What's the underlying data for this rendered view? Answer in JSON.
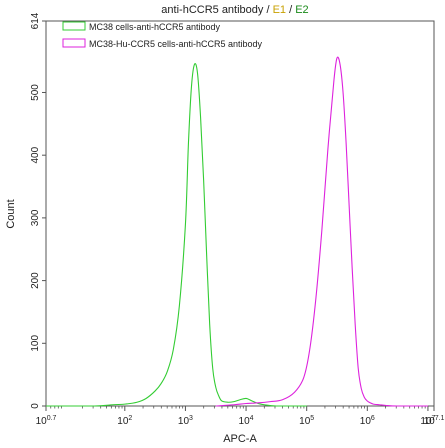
{
  "chart_data": {
    "type": "line",
    "title": {
      "prefix": "anti-hCCR5 antibody / ",
      "e1": "E1",
      "sep": " / ",
      "e2": "E2"
    },
    "title_colors": {
      "prefix": "#111111",
      "e1": "#c8a000",
      "e2": "#1a8a1a"
    },
    "xlabel": "APC-A",
    "ylabel": "Count",
    "x_scale": "log10",
    "xlim": [
      0.7,
      7.1
    ],
    "ylim": [
      0,
      614
    ],
    "x_ticks": [
      {
        "exp": 0.7,
        "base": "10",
        "sup": "0.7"
      },
      {
        "exp": 2,
        "base": "10",
        "sup": "2"
      },
      {
        "exp": 3,
        "base": "10",
        "sup": "3"
      },
      {
        "exp": 4,
        "base": "10",
        "sup": "4"
      },
      {
        "exp": 5,
        "base": "10",
        "sup": "5"
      },
      {
        "exp": 6,
        "base": "10",
        "sup": "6"
      },
      {
        "exp": 7,
        "base": "10",
        "sup": "7"
      },
      {
        "exp": 7.1,
        "base": "10",
        "sup": "7.1"
      }
    ],
    "y_ticks": [
      0,
      100,
      200,
      300,
      400,
      500,
      614
    ],
    "legend_position": "top-left",
    "series": [
      {
        "name": "MC38 cells-anti-hCCR5 antibody",
        "color": "#33cc33",
        "x": [
          0.7,
          1.5,
          1.8,
          2.0,
          2.2,
          2.35,
          2.5,
          2.6,
          2.7,
          2.8,
          2.9,
          3.0,
          3.05,
          3.1,
          3.15,
          3.2,
          3.25,
          3.3,
          3.35,
          3.4,
          3.45,
          3.5,
          3.55,
          3.6,
          3.7,
          3.8,
          3.9,
          4.0,
          4.1,
          4.2,
          4.3,
          4.5,
          5.0
        ],
        "y": [
          0,
          0,
          2,
          3,
          6,
          12,
          24,
          36,
          55,
          90,
          160,
          290,
          420,
          510,
          545,
          530,
          460,
          360,
          240,
          130,
          60,
          30,
          16,
          8,
          6,
          7,
          10,
          12,
          8,
          4,
          2,
          0,
          0
        ]
      },
      {
        "name": "MC38-Hu-CCR5 cells-anti-hCCR5 antibody",
        "color": "#dd22dd",
        "x": [
          3.5,
          3.8,
          4.0,
          4.2,
          4.4,
          4.6,
          4.8,
          4.95,
          5.05,
          5.15,
          5.25,
          5.35,
          5.45,
          5.5,
          5.55,
          5.6,
          5.65,
          5.7,
          5.75,
          5.8,
          5.85,
          5.9,
          5.95,
          6.0,
          6.05,
          6.1,
          6.2,
          6.3,
          6.5,
          7.0
        ],
        "y": [
          0,
          2,
          4,
          5,
          7,
          10,
          22,
          45,
          90,
          170,
          280,
          410,
          520,
          555,
          545,
          500,
          420,
          320,
          220,
          130,
          60,
          28,
          14,
          8,
          5,
          3,
          2,
          1,
          0,
          0
        ]
      }
    ]
  }
}
